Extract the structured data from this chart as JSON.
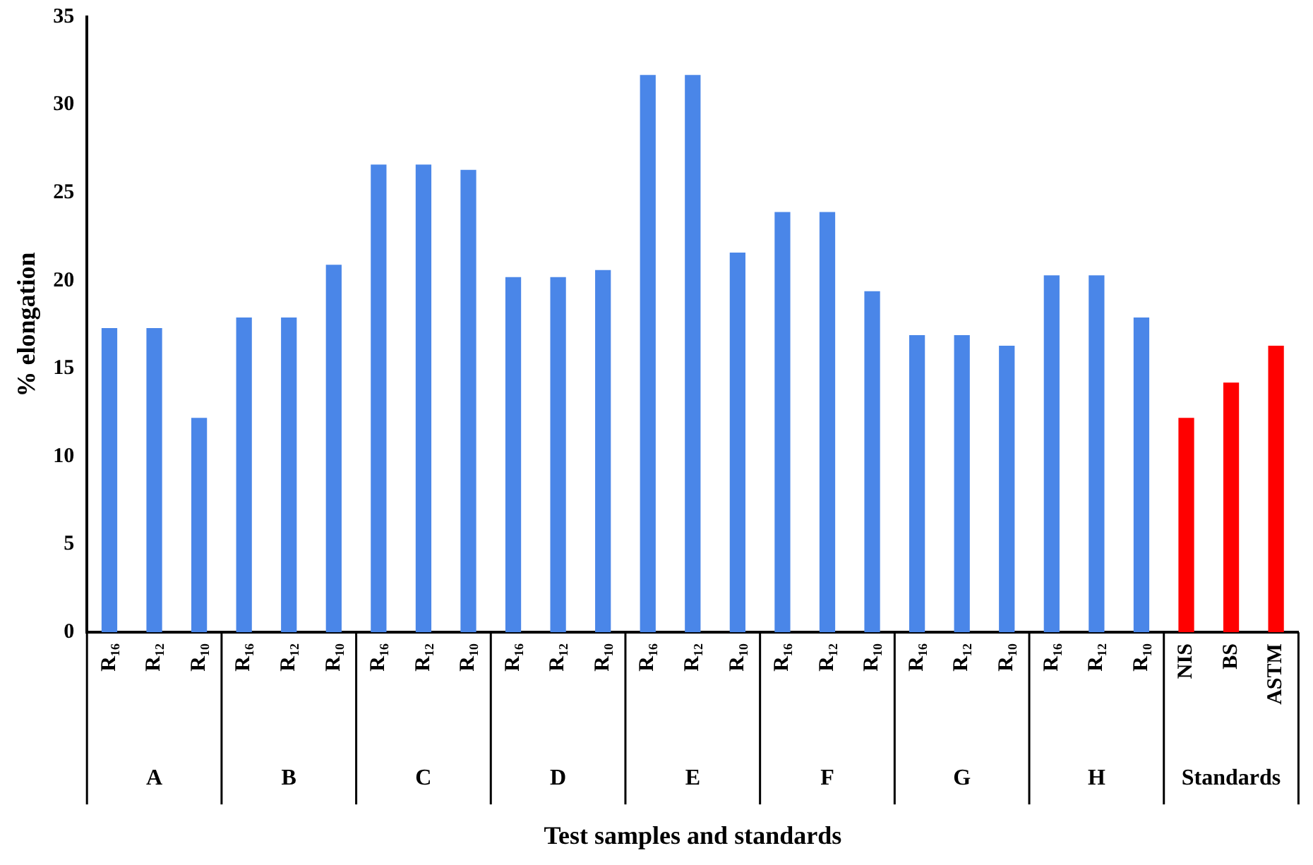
{
  "chart_data": {
    "type": "bar",
    "xlabel": "Test samples and standards",
    "ylabel": "% elongation",
    "categories": [
      "R₁₆",
      "R₁₂",
      "R₁₀",
      "R₁₆",
      "R₁₂",
      "R₁₀",
      "R₁₆",
      "R₁₂",
      "R₁₀",
      "R₁₆",
      "R₁₂",
      "R₁₀",
      "R₁₆",
      "R₁₂",
      "R₁₀",
      "R₁₆",
      "R₁₂",
      "R₁₀",
      "R₁₆",
      "R₁₂",
      "R₁₀",
      "R₁₆",
      "R₁₂",
      "R₁₀",
      "NIS",
      "BS",
      "ASTM"
    ],
    "values": [
      17.3,
      17.3,
      12.2,
      17.9,
      17.9,
      20.9,
      26.6,
      26.6,
      26.3,
      20.2,
      20.2,
      20.6,
      31.7,
      31.7,
      21.6,
      23.9,
      23.9,
      19.4,
      16.9,
      16.9,
      16.3,
      20.3,
      20.3,
      17.9,
      12.2,
      14.2,
      16.3
    ],
    "colors": [
      "#4a86e8",
      "#4a86e8",
      "#4a86e8",
      "#4a86e8",
      "#4a86e8",
      "#4a86e8",
      "#4a86e8",
      "#4a86e8",
      "#4a86e8",
      "#4a86e8",
      "#4a86e8",
      "#4a86e8",
      "#4a86e8",
      "#4a86e8",
      "#4a86e8",
      "#4a86e8",
      "#4a86e8",
      "#4a86e8",
      "#4a86e8",
      "#4a86e8",
      "#4a86e8",
      "#4a86e8",
      "#4a86e8",
      "#4a86e8",
      "#ff0000",
      "#ff0000",
      "#ff0000"
    ],
    "annotations": [
      "A",
      "B",
      "C",
      "D",
      "E",
      "F",
      "G",
      "H",
      "Standards"
    ],
    "ylim": [
      0,
      35
    ],
    "yticks": [
      0,
      5,
      10,
      15,
      20,
      25,
      30,
      35
    ],
    "grid": false,
    "legend": false
  }
}
